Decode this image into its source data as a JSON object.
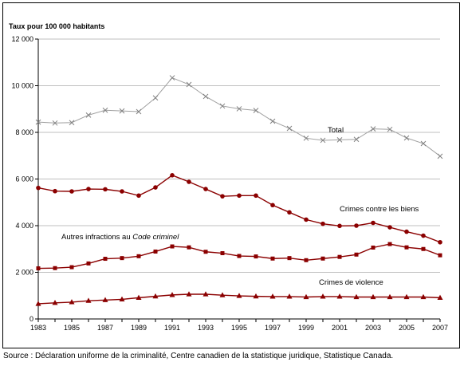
{
  "chart_data": {
    "type": "line",
    "title": "",
    "ylabel": "Taux pour 100 000 habitants",
    "xlabel": "",
    "ylim": [
      0,
      12000
    ],
    "yticks": [
      0,
      2000,
      4000,
      6000,
      8000,
      10000,
      12000
    ],
    "ytick_labels": [
      "0",
      "2 000",
      "4 000",
      "6 000",
      "8 000",
      "10 000",
      "12 000"
    ],
    "xticks": [
      1983,
      1985,
      1987,
      1989,
      1991,
      1993,
      1995,
      1997,
      1999,
      2001,
      2003,
      2005,
      2007
    ],
    "xtick_labels": [
      "1983",
      "1985",
      "1987",
      "1989",
      "1991",
      "1993",
      "1995",
      "1997",
      "1999",
      "2001",
      "2003",
      "2005",
      "2007"
    ],
    "x": [
      1983,
      1984,
      1985,
      1986,
      1987,
      1988,
      1989,
      1990,
      1991,
      1992,
      1993,
      1994,
      1995,
      1996,
      1997,
      1998,
      1999,
      2000,
      2001,
      2002,
      2003,
      2004,
      2005,
      2006,
      2007
    ],
    "grid": "horizontal",
    "series": [
      {
        "name": "Total",
        "color": "#a0a0a0",
        "marker": "x",
        "values": [
          8440,
          8400,
          8420,
          8740,
          8950,
          8920,
          8890,
          9480,
          10340,
          10050,
          9540,
          9130,
          9010,
          8940,
          8480,
          8170,
          7750,
          7660,
          7680,
          7700,
          8150,
          8130,
          7760,
          7520,
          6980
        ]
      },
      {
        "name": "Crimes contre les biens",
        "color": "#8b0000",
        "marker": "circle",
        "values": [
          5620,
          5480,
          5470,
          5570,
          5560,
          5470,
          5290,
          5640,
          6160,
          5880,
          5570,
          5260,
          5290,
          5290,
          4880,
          4570,
          4260,
          4080,
          3990,
          4000,
          4120,
          3930,
          3740,
          3570,
          3290
        ]
      },
      {
        "name": "Autres infractions au Code criminel",
        "color": "#8b0000",
        "marker": "square",
        "values": [
          2170,
          2180,
          2220,
          2380,
          2580,
          2610,
          2690,
          2890,
          3110,
          3070,
          2880,
          2820,
          2700,
          2680,
          2590,
          2610,
          2520,
          2590,
          2660,
          2760,
          3060,
          3210,
          3070,
          3000,
          2730
        ]
      },
      {
        "name": "Crimes de violence",
        "color": "#8b0000",
        "marker": "triangle",
        "values": [
          650,
          690,
          720,
          780,
          810,
          840,
          910,
          970,
          1030,
          1060,
          1060,
          1020,
          990,
          970,
          960,
          960,
          940,
          960,
          960,
          940,
          940,
          940,
          940,
          940,
          910
        ]
      }
    ],
    "labels": {
      "total": "Total",
      "biens": "Crimes contre les biens",
      "autres_prefix": "Autres infractions au ",
      "autres_italic": "Code criminel",
      "violence": "Crimes de violence"
    }
  },
  "source": "Source : Déclaration uniforme de la criminalité, Centre canadien de la statistique juridique, Statistique Canada."
}
